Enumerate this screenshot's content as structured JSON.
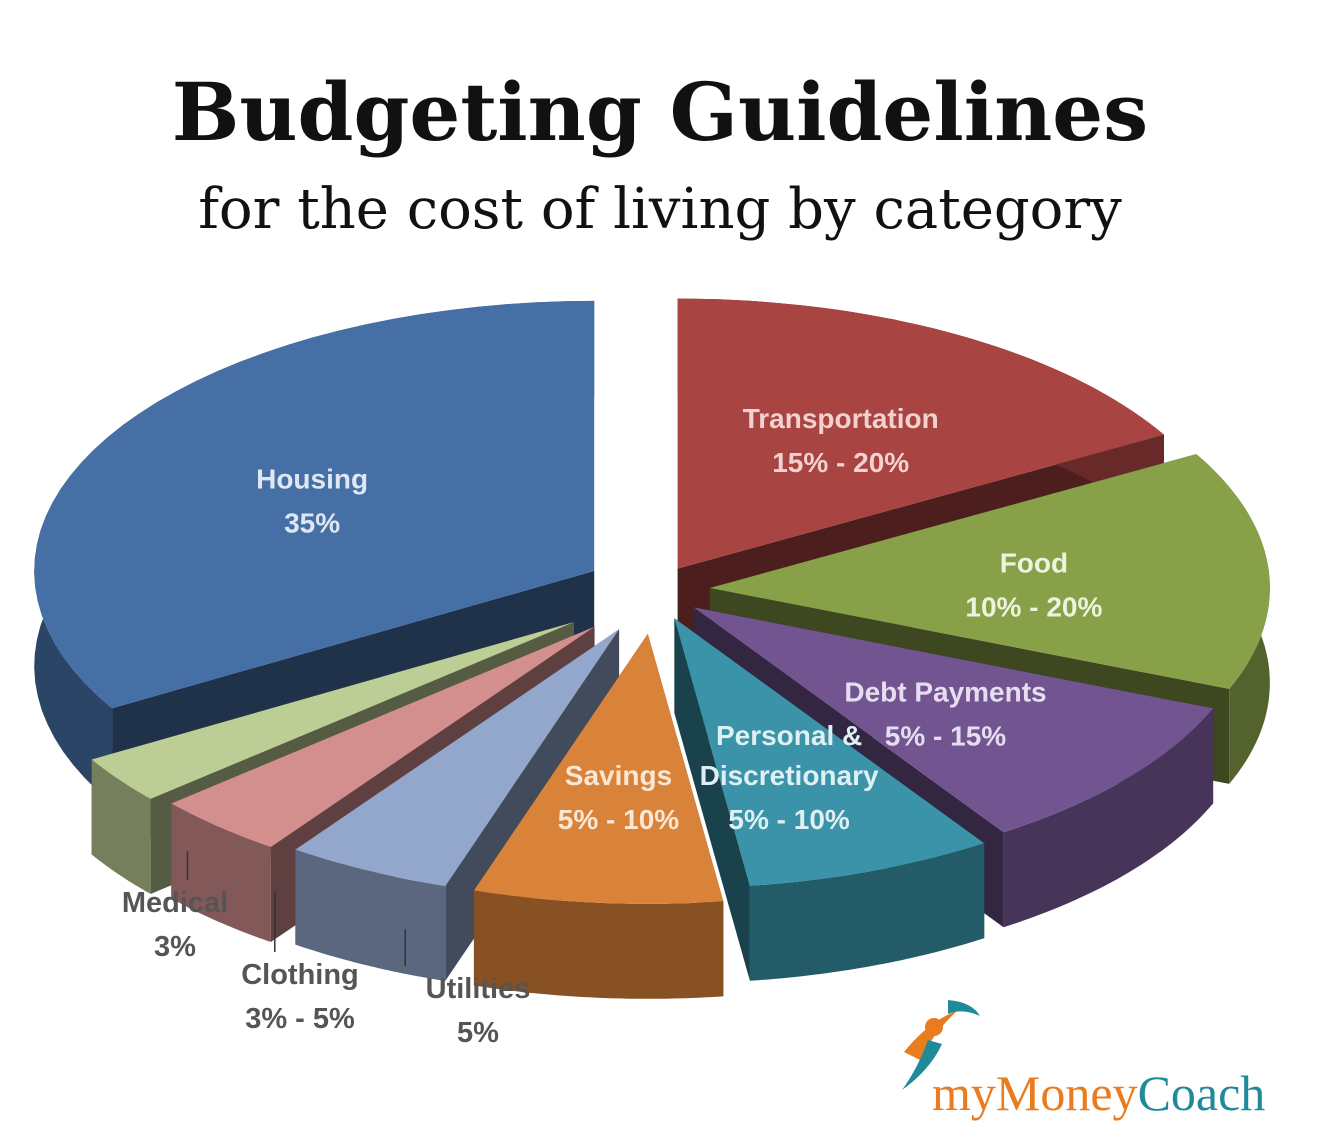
{
  "title": "Budgeting Guidelines",
  "subtitle": "for the cost of living by category",
  "logo": {
    "part1": "my",
    "part2": "Money",
    "part3": "Coach"
  },
  "colors": {
    "text_dark": "#111111",
    "label_gray": "#555555",
    "logo_orange": "#e97c1e",
    "logo_teal": "#1f8a9a"
  },
  "chart_data": {
    "type": "pie",
    "title": "Budgeting Guidelines",
    "subtitle": "for the cost of living by category",
    "slices": [
      {
        "name": "Transportation",
        "range": "15% - 20%",
        "value": 17.5,
        "color": "#a84442"
      },
      {
        "name": "Food",
        "range": "10% - 20%",
        "value": 15,
        "color": "#88a048"
      },
      {
        "name": "Debt Payments",
        "range": "5% - 15%",
        "value": 10,
        "color": "#725590"
      },
      {
        "name": "Personal & Discretionary",
        "name_lines": [
          "Personal &",
          "Discretionary"
        ],
        "range": "5% - 10%",
        "value": 7.5,
        "color": "#3a93a8"
      },
      {
        "name": "Savings",
        "range": "5% - 10%",
        "value": 7.5,
        "color": "#d9823a"
      },
      {
        "name": "Utilities",
        "range": "5%",
        "value": 5,
        "color": "#93a6cc"
      },
      {
        "name": "Clothing",
        "range": "3% - 5%",
        "value": 4,
        "color": "#d28f8e"
      },
      {
        "name": "Medical",
        "range": "3%",
        "value": 3,
        "color": "#bccd95"
      },
      {
        "name": "Housing",
        "range": "35%",
        "value": 35,
        "color": "#4670a5"
      }
    ]
  }
}
